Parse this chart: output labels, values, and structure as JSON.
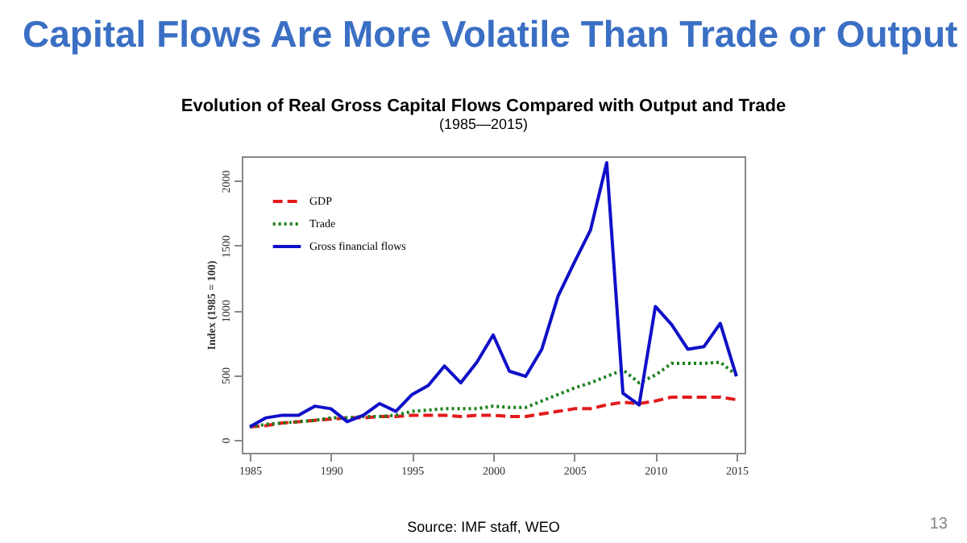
{
  "chart_data": {
    "type": "line",
    "title": "Capital Flows Are More Volatile Than Trade or Output",
    "subtitle": "Evolution of Real Gross Capital Flows Compared with Output and Trade\n(1985—2015)",
    "ylabel": "Index (1985 = 100)",
    "x": [
      1985,
      1986,
      1987,
      1988,
      1989,
      1990,
      1991,
      1992,
      1993,
      1994,
      1995,
      1996,
      1997,
      1998,
      1999,
      2000,
      2001,
      2002,
      2003,
      2004,
      2005,
      2006,
      2007,
      2008,
      2009,
      2010,
      2011,
      2012,
      2013,
      2014,
      2015
    ],
    "series": [
      {
        "name": "GDP",
        "color": "#e41a1c",
        "line_style": "dashed",
        "values": [
          100,
          110,
          130,
          140,
          150,
          160,
          170,
          170,
          180,
          180,
          190,
          190,
          190,
          180,
          190,
          190,
          180,
          180,
          200,
          220,
          240,
          240,
          270,
          290,
          280,
          300,
          330,
          330,
          330,
          330,
          310
        ]
      },
      {
        "name": "Trade",
        "color": "#1a7f1a",
        "line_style": "dotted",
        "values": [
          100,
          120,
          130,
          140,
          150,
          170,
          170,
          180,
          180,
          190,
          220,
          230,
          240,
          240,
          240,
          260,
          250,
          250,
          300,
          350,
          400,
          440,
          490,
          540,
          440,
          500,
          590,
          590,
          590,
          600,
          500
        ]
      },
      {
        "name": "Gross financial flows",
        "color": "#1010c8",
        "line_style": "solid",
        "values": [
          100,
          170,
          190,
          190,
          260,
          240,
          140,
          190,
          280,
          220,
          350,
          420,
          570,
          440,
          600,
          810,
          530,
          490,
          700,
          1110,
          1370,
          1620,
          2140,
          360,
          270,
          1030,
          890,
          700,
          720,
          900,
          490
        ]
      }
    ],
    "xlim": [
      1984.5,
      2015.5
    ],
    "xticks": [
      1985,
      1990,
      1995,
      2000,
      2005,
      2010,
      2015
    ],
    "ylim": [
      -100,
      2190
    ],
    "yticks": [
      0,
      500,
      1000,
      1500,
      2000
    ],
    "grid": false,
    "legend": "top left",
    "annotations": [
      "Source: IMF staff, WEO",
      "13"
    ]
  }
}
